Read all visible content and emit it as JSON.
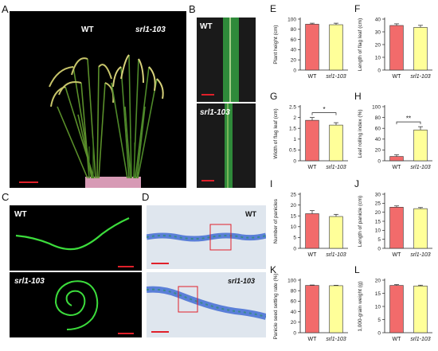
{
  "panels": {
    "A": {
      "label": "A",
      "wt": "WT",
      "mut": "srl1-103"
    },
    "B": {
      "label": "B",
      "wt": "WT",
      "mut": "srl1-103"
    },
    "C": {
      "label": "C",
      "wt": "WT",
      "mut": "srl1-103"
    },
    "D": {
      "label": "D",
      "wt": "WT",
      "mut": "srl1-103"
    }
  },
  "colors": {
    "wt": "#f26b6b",
    "mut": "#ffff99",
    "bar_edge": "#333333",
    "red_bar": "#e0202a"
  },
  "chart_data": [
    {
      "id": "E",
      "type": "bar",
      "categories": [
        "WT",
        "srl1-103"
      ],
      "values": [
        90,
        89
      ],
      "errors": [
        2,
        3
      ],
      "ylabel": "Plant height (cm)",
      "ylim": [
        0,
        100
      ],
      "yticks": [
        0,
        20,
        40,
        60,
        80,
        100
      ]
    },
    {
      "id": "F",
      "type": "bar",
      "categories": [
        "WT",
        "srl1-103"
      ],
      "values": [
        35,
        33.5
      ],
      "errors": [
        1.3,
        1.6
      ],
      "ylabel": "Length of flag leaf (cm)",
      "ylim": [
        0,
        40
      ],
      "yticks": [
        0,
        10,
        20,
        30,
        40
      ]
    },
    {
      "id": "G",
      "type": "bar",
      "categories": [
        "WT",
        "srl1-103"
      ],
      "values": [
        1.87,
        1.65
      ],
      "errors": [
        0.13,
        0.11
      ],
      "ylabel": "Width of flag leaf (cm)",
      "ylim": [
        0,
        2.5
      ],
      "yticks": [
        0,
        0.5,
        1.0,
        1.5,
        2.0,
        2.5
      ],
      "sig": "*"
    },
    {
      "id": "H",
      "type": "bar",
      "categories": [
        "WT",
        "srl1-103"
      ],
      "values": [
        8,
        57
      ],
      "errors": [
        3,
        6
      ],
      "ylabel": "Leaf rolling index (%)",
      "ylim": [
        0,
        100
      ],
      "yticks": [
        0,
        20,
        40,
        60,
        80,
        100
      ],
      "sig": "**"
    },
    {
      "id": "I",
      "type": "bar",
      "categories": [
        "WT",
        "srl1-103"
      ],
      "values": [
        16,
        14.7
      ],
      "errors": [
        1.4,
        1.0
      ],
      "ylabel": "Number of panicles",
      "ylim": [
        0,
        25
      ],
      "yticks": [
        0,
        5,
        10,
        15,
        20,
        25
      ]
    },
    {
      "id": "J",
      "type": "bar",
      "categories": [
        "WT",
        "srl1-103"
      ],
      "values": [
        22.8,
        22
      ],
      "errors": [
        0.7,
        0.6
      ],
      "ylabel": "Length of panicle (cm)",
      "ylim": [
        0,
        30
      ],
      "yticks": [
        0,
        5,
        10,
        15,
        20,
        25,
        30
      ]
    },
    {
      "id": "K",
      "type": "bar",
      "categories": [
        "WT",
        "srl1-103"
      ],
      "values": [
        90,
        89.5
      ],
      "errors": [
        0.8,
        0.8
      ],
      "ylabel": "Panicle seed setting rate (%)",
      "ylim": [
        0,
        100
      ],
      "yticks": [
        0,
        20,
        40,
        60,
        80,
        100
      ]
    },
    {
      "id": "L",
      "type": "bar",
      "categories": [
        "WT",
        "srl1-103"
      ],
      "values": [
        18,
        17.8
      ],
      "errors": [
        0.3,
        0.3
      ],
      "ylabel": "1,000-grain weight (g)",
      "ylim": [
        0,
        20
      ],
      "yticks": [
        0,
        5,
        10,
        15,
        20
      ]
    }
  ]
}
